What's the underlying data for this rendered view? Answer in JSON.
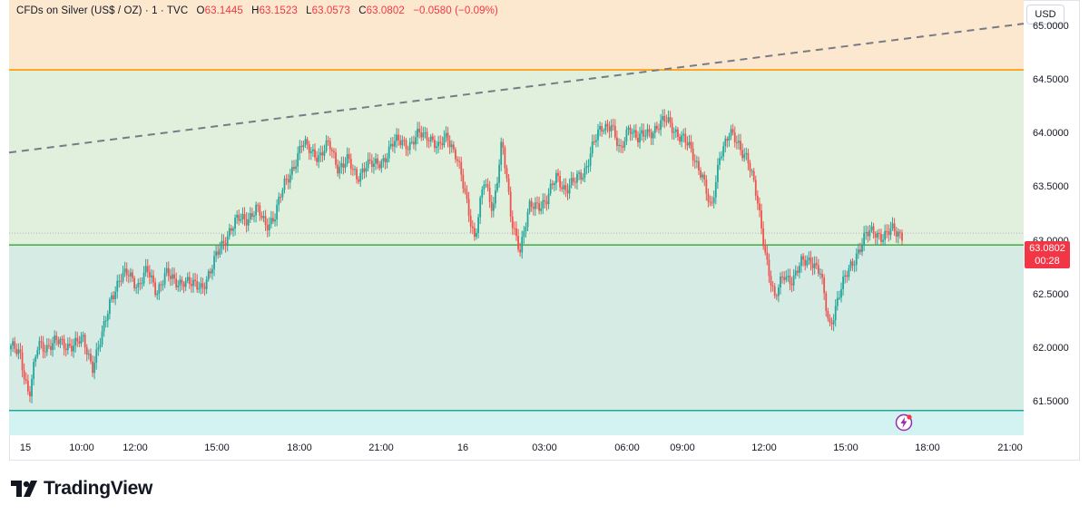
{
  "legend": {
    "symbol": "CFDs on Silver (US$ / OZ) · 1 · TVC",
    "open_label": "O",
    "open": "63.1445",
    "high_label": "H",
    "high": "63.1523",
    "low_label": "L",
    "low": "63.0573",
    "close_label": "C",
    "close": "63.0802",
    "change": "−0.0580 (−0.09%)"
  },
  "currency": "USD",
  "last_price": {
    "value": "63.0802",
    "countdown": "00:28"
  },
  "brand": "TradingView",
  "icons": {
    "brand": "tradingview-logo-icon",
    "alert": "flash-icon"
  },
  "colors": {
    "up": "#26a69a",
    "down": "#ef5350",
    "orange_line": "#ff9800",
    "green_line": "#4caf50",
    "teal_line": "#26a69a",
    "last_price": "#f23645"
  },
  "chart_data": {
    "type": "line",
    "yaxis_ticks": [
      "65.0000",
      "64.5000",
      "64.0000",
      "63.5000",
      "63.0000",
      "62.5000",
      "62.0000",
      "61.5000"
    ],
    "xaxis_ticks": [
      "15",
      "10:00",
      "12:00",
      "15:00",
      "18:00",
      "21:00",
      "16",
      "03:00",
      "06:00",
      "09:00",
      "12:00",
      "15:00",
      "18:00",
      "21:00"
    ],
    "ylim": [
      61.2,
      65.25
    ],
    "horizontal_levels": [
      {
        "value": 64.6,
        "color": "#ff9800"
      },
      {
        "value": 62.97,
        "color": "#4caf50"
      },
      {
        "value": 61.43,
        "color": "#26a69a"
      }
    ],
    "trendline": {
      "from": 63.83,
      "to": 65.03,
      "style": "dashed"
    },
    "zones": [
      {
        "from": 64.6,
        "to": 65.25,
        "color": "#fce8cf"
      },
      {
        "from": 62.97,
        "to": 64.6,
        "color": "#e0f0dc"
      },
      {
        "from": 61.43,
        "to": 62.97,
        "color": "#d6ebe4"
      },
      {
        "from": 61.2,
        "to": 61.43,
        "color": "#d3f3f3"
      }
    ],
    "series": [
      {
        "values": [
          62.0,
          61.98,
          61.55,
          62.05,
          62.03,
          62.06,
          62.05,
          62.04,
          62.08,
          61.85,
          62.1,
          62.5,
          62.65,
          62.7,
          62.6,
          62.72,
          62.55,
          62.7,
          62.62,
          62.65,
          62.58,
          62.6,
          62.72,
          62.95,
          63.1,
          63.2,
          63.23,
          63.3,
          63.15,
          63.25,
          63.5,
          63.7,
          63.9,
          63.85,
          63.8,
          63.9,
          63.7,
          63.75,
          63.6,
          63.72,
          63.7,
          63.78,
          63.9,
          63.95,
          63.9,
          64.0,
          64.0,
          63.85,
          64.0,
          63.8,
          63.4,
          63.05,
          63.55,
          63.3,
          63.95,
          63.2,
          62.95,
          63.3,
          63.35,
          63.4,
          63.6,
          63.5,
          63.55,
          63.65,
          63.9,
          64.05,
          64.12,
          63.8,
          64.1,
          63.95,
          64.0,
          64.08,
          64.12,
          64.05,
          63.95,
          63.8,
          63.65,
          63.25,
          63.85,
          64.0,
          63.9,
          63.8,
          63.4,
          62.9,
          62.45,
          62.7,
          62.65,
          62.8,
          62.85,
          62.7,
          62.2,
          62.5,
          62.7,
          62.9,
          63.05,
          63.1,
          63.05,
          63.1,
          63.08
        ]
      }
    ]
  }
}
